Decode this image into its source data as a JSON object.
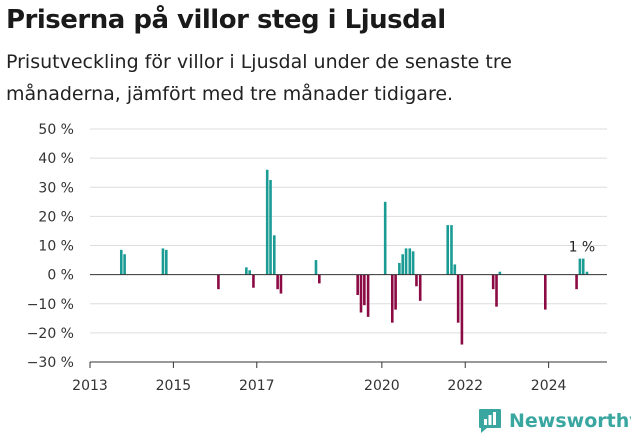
{
  "header": {
    "title": "Priserna på villor steg i Ljusdal",
    "subtitle": "Prisutveckling för villor i Ljusdal under de senaste tre månaderna, jämfört med tre månader tidigare."
  },
  "brand": {
    "name": "Newsworthy",
    "logo_icon": "newsworthy-logo-icon",
    "color": "#3aa6a0"
  },
  "chart_data": {
    "type": "bar",
    "xlabel": "",
    "ylabel": "",
    "x_unit": "year",
    "xlim": [
      2013,
      2025.4
    ],
    "ylim": [
      -30,
      50
    ],
    "y_ticks": [
      50,
      40,
      30,
      20,
      10,
      0,
      -10,
      -20,
      -30
    ],
    "y_tick_labels": [
      "50 %",
      "40 %",
      "30 %",
      "20 %",
      "10 %",
      "0 %",
      "−10 %",
      "−20 %",
      "−30 %"
    ],
    "x_ticks": [
      2013,
      2015,
      2017,
      2020,
      2022,
      2024
    ],
    "x_tick_labels": [
      "2013",
      "2015",
      "2017",
      "2020",
      "2022",
      "2024"
    ],
    "grid": "horizontal",
    "legend": "none",
    "colors": {
      "positive": "#1a9c94",
      "negative": "#8c0a43",
      "grid": "#dddddd",
      "axis": "#333333"
    },
    "annotation": {
      "text": "1 %",
      "x": 2024.75,
      "y": 1
    },
    "points": [
      {
        "x": 2013.75,
        "y": 8.5
      },
      {
        "x": 2013.83,
        "y": 7
      },
      {
        "x": 2014.75,
        "y": 9
      },
      {
        "x": 2014.83,
        "y": 8.5
      },
      {
        "x": 2016.08,
        "y": -5
      },
      {
        "x": 2016.75,
        "y": 2.5
      },
      {
        "x": 2016.83,
        "y": 1.5
      },
      {
        "x": 2016.92,
        "y": -4.5
      },
      {
        "x": 2017.25,
        "y": 36
      },
      {
        "x": 2017.33,
        "y": 32.5
      },
      {
        "x": 2017.42,
        "y": 13.5
      },
      {
        "x": 2017.5,
        "y": -5
      },
      {
        "x": 2017.58,
        "y": -6.5
      },
      {
        "x": 2018.42,
        "y": 5
      },
      {
        "x": 2018.5,
        "y": -3
      },
      {
        "x": 2019.42,
        "y": -7
      },
      {
        "x": 2019.5,
        "y": -13
      },
      {
        "x": 2019.58,
        "y": -10.5
      },
      {
        "x": 2019.67,
        "y": -14.5
      },
      {
        "x": 2020.08,
        "y": 25
      },
      {
        "x": 2020.25,
        "y": -16.5
      },
      {
        "x": 2020.33,
        "y": -12
      },
      {
        "x": 2020.42,
        "y": 4
      },
      {
        "x": 2020.5,
        "y": 7
      },
      {
        "x": 2020.58,
        "y": 9
      },
      {
        "x": 2020.67,
        "y": 9
      },
      {
        "x": 2020.75,
        "y": 8
      },
      {
        "x": 2020.83,
        "y": -4
      },
      {
        "x": 2020.92,
        "y": -9
      },
      {
        "x": 2021.58,
        "y": 17
      },
      {
        "x": 2021.67,
        "y": 17
      },
      {
        "x": 2021.75,
        "y": 3.5
      },
      {
        "x": 2021.83,
        "y": -16.5
      },
      {
        "x": 2021.92,
        "y": -24
      },
      {
        "x": 2022.67,
        "y": -5
      },
      {
        "x": 2022.75,
        "y": -11
      },
      {
        "x": 2022.83,
        "y": 1
      },
      {
        "x": 2023.92,
        "y": -12
      },
      {
        "x": 2024.67,
        "y": -5
      },
      {
        "x": 2024.75,
        "y": 5.5
      },
      {
        "x": 2024.83,
        "y": 5.5
      },
      {
        "x": 2024.92,
        "y": 1
      }
    ]
  }
}
